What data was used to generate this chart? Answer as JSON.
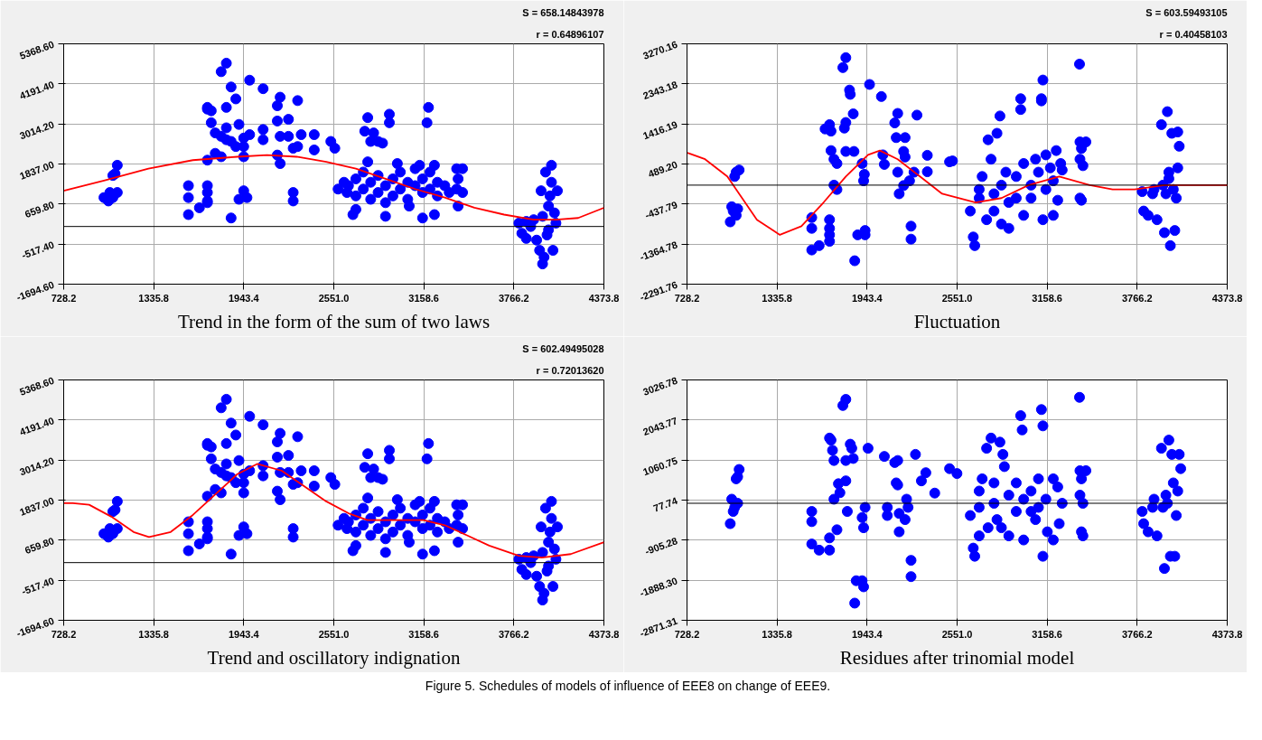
{
  "chart_data": [
    {
      "type": "scatter",
      "title": "Trend in the form of the sum of two laws",
      "annotations": [
        "S = 658.14843978",
        "r = 0.64896107"
      ],
      "xlim": [
        728.2,
        4373.8
      ],
      "ylim": [
        -1694.6,
        5368.6
      ],
      "xticks": [
        {
          "value": 728.2,
          "label": "728.2"
        },
        {
          "value": 1335.8,
          "label": "1335.8"
        },
        {
          "value": 1943.4,
          "label": "1943.4"
        },
        {
          "value": 2551.0,
          "label": "2551.0"
        },
        {
          "value": 3158.6,
          "label": "3158.6"
        },
        {
          "value": 3766.2,
          "label": "3766.2"
        },
        {
          "value": 4373.8,
          "label": "4373.8"
        }
      ],
      "yticks": [
        {
          "value": -1694.6,
          "label": "-1694.60"
        },
        {
          "value": -517.4,
          "label": "-517.40"
        },
        {
          "value": 659.8,
          "label": "659.80"
        },
        {
          "value": 1837.0,
          "label": "1837.00"
        },
        {
          "value": 3014.2,
          "label": "3014.20"
        },
        {
          "value": 4191.4,
          "label": "4191.40"
        },
        {
          "value": 5368.6,
          "label": "5368.60"
        }
      ],
      "grid": true,
      "marker": "circle",
      "ref_lines": [
        {
          "axis": "y",
          "value": 0,
          "color": "#000000"
        }
      ],
      "series": [
        {
          "color": "#0000ff",
          "x": [
            1090,
            1075,
            1060,
            1040,
            1090,
            1060,
            1030,
            1000,
            1570,
            1570,
            1570,
            1644,
            1698,
            1698,
            1698,
            1698,
            1698,
            1698,
            1698,
            1724,
            1724,
            1751,
            1751,
            1791,
            1791,
            1791,
            1826,
            1826,
            1826,
            1826,
            1858,
            1858,
            1858,
            1890,
            1890,
            1911,
            1911,
            1943,
            1943,
            1943,
            1943,
            1965,
            1983,
            1983,
            2074,
            2074,
            2074,
            2170,
            2170,
            2170,
            2189,
            2189,
            2189,
            2245,
            2245,
            2277,
            2277,
            2277,
            2307,
            2307,
            2331,
            2419,
            2419,
            2531,
            2558,
            2780,
            2926,
            2926,
            3190,
            3180,
            2760,
            2820,
            2850,
            2880,
            2800,
            2650,
            2700,
            2700,
            2750,
            2750,
            2800,
            2800,
            2850,
            2850,
            2900,
            2900,
            2950,
            2950,
            3000,
            3000,
            3050,
            3050,
            3100,
            3100,
            3150,
            3150,
            3200,
            3200,
            3250,
            3250,
            3300,
            3330,
            2700,
            2680,
            2900,
            3060,
            3150,
            3230,
            3380,
            3390,
            3380,
            3390,
            3420,
            3420,
            2640,
            2580,
            2620,
            2780,
            2980,
            3130,
            3230,
            3800,
            3820,
            3850,
            3880,
            3900,
            3920,
            3940,
            3950,
            3960,
            3970,
            3980,
            3990,
            4000,
            4010,
            4020,
            4030,
            4040,
            4050,
            4060,
            4000,
            3850,
            3960,
            4020
          ],
          "values": [
            1800,
            1550,
            1500,
            1000,
            1000,
            850,
            750,
            850,
            1200,
            850,
            350,
            550,
            3500,
            3450,
            1950,
            1200,
            1000,
            750,
            700,
            3400,
            3050,
            2750,
            2150,
            4550,
            2650,
            2050,
            4800,
            3500,
            2900,
            2550,
            4100,
            2500,
            250,
            3750,
            2350,
            3000,
            800,
            2600,
            2350,
            2050,
            1050,
            850,
            4300,
            2700,
            4050,
            2850,
            2550,
            3550,
            3100,
            2100,
            3800,
            2650,
            1850,
            3150,
            2650,
            2300,
            1000,
            750,
            3700,
            2350,
            2700,
            2700,
            2250,
            2500,
            2300,
            3200,
            3300,
            3050,
            3500,
            3050,
            2800,
            2750,
            2500,
            2450,
            2500,
            1200,
            900,
            1400,
            1100,
            1600,
            1300,
            800,
            1000,
            1500,
            1200,
            700,
            1400,
            900,
            1100,
            1600,
            1300,
            800,
            1200,
            1700,
            1000,
            1400,
            1100,
            1600,
            900,
            1300,
            1200,
            1000,
            500,
            350,
            300,
            600,
            250,
            350,
            1700,
            1400,
            1100,
            600,
            1000,
            1700,
            1000,
            1100,
            1300,
            1900,
            1850,
            1800,
            1800,
            100,
            -200,
            -350,
            0,
            200,
            -400,
            -700,
            1050,
            300,
            -900,
            1600,
            -250,
            600,
            900,
            1300,
            -700,
            400,
            100,
            1050,
            -100,
            150,
            -1100,
            1800
          ]
        },
        {
          "type": "line",
          "marker": "none",
          "color": "#ff0000",
          "x": [
            728.2,
            1000,
            1300,
            1600,
            1900,
            2100,
            2300,
            2500,
            2700,
            2900,
            3100,
            3300,
            3500,
            3700,
            3900,
            4050,
            4200,
            4373.8
          ],
          "values": [
            1050,
            1350,
            1700,
            1950,
            2050,
            2100,
            2050,
            1900,
            1700,
            1400,
            1100,
            850,
            550,
            350,
            200,
            200,
            250,
            550
          ]
        }
      ]
    },
    {
      "type": "scatter",
      "title": "Fluctuation",
      "annotations": [
        "S = 603.59493105",
        "r = 0.40458103"
      ],
      "xlim": [
        728.2,
        4373.8
      ],
      "ylim": [
        -2291.76,
        3270.16
      ],
      "xticks": [
        {
          "value": 728.2,
          "label": "728.2"
        },
        {
          "value": 1335.8,
          "label": "1335.8"
        },
        {
          "value": 1943.4,
          "label": "1943.4"
        },
        {
          "value": 2551.0,
          "label": "2551.0"
        },
        {
          "value": 3158.6,
          "label": "3158.6"
        },
        {
          "value": 3766.2,
          "label": "3766.2"
        },
        {
          "value": 4373.8,
          "label": "4373.8"
        }
      ],
      "yticks": [
        {
          "value": -2291.76,
          "label": "-2291.76"
        },
        {
          "value": -1364.78,
          "label": "-1364.78"
        },
        {
          "value": -437.79,
          "label": "-437.79"
        },
        {
          "value": 489.2,
          "label": "489.20"
        },
        {
          "value": 1416.19,
          "label": "1416.19"
        },
        {
          "value": 2343.18,
          "label": "2343.18"
        },
        {
          "value": 3270.16,
          "label": "3270.16"
        }
      ],
      "grid": true,
      "marker": "circle",
      "ref_lines": [
        {
          "axis": "y",
          "value": 0,
          "color": "#000000"
        }
      ],
      "series": [
        {
          "color": "#0000ff",
          "x": [
            1060,
            1080,
            1050,
            1030,
            1040,
            1060,
            1020,
            1070,
            1570,
            1570,
            1570,
            1620,
            1690,
            1690,
            1690,
            1690,
            1660,
            1690,
            1700,
            1700,
            1720,
            1740,
            1720,
            1740,
            1780,
            1800,
            1790,
            1800,
            1800,
            1825,
            1830,
            1850,
            1855,
            1860,
            1880,
            1910,
            1930,
            1930,
            1920,
            1925,
            1960,
            2040,
            2050,
            2060,
            2130,
            2150,
            2140,
            2150,
            2160,
            2200,
            2200,
            2190,
            2240,
            2240,
            2260,
            2280,
            2350,
            2350,
            2500,
            2520,
            2230,
            2190,
            2640,
            2660,
            2670,
            2700,
            2700,
            2720,
            2750,
            2760,
            2780,
            2800,
            2800,
            2820,
            2840,
            2850,
            2850,
            2880,
            2900,
            2900,
            2950,
            2950,
            2980,
            2980,
            3000,
            3000,
            3050,
            3050,
            3080,
            3100,
            3130,
            3120,
            3120,
            3130,
            3150,
            3150,
            3180,
            3200,
            3200,
            3220,
            3230,
            3250,
            3260,
            3380,
            3390,
            3380,
            3400,
            3380,
            3390,
            3420,
            3377,
            3800,
            3810,
            3840,
            3870,
            3880,
            3900,
            3930,
            3940,
            3950,
            3960,
            3970,
            3980,
            3990,
            4000,
            4010,
            4020,
            4040,
            4040,
            4050,
            4030,
            3980
          ],
          "values": [
            300,
            350,
            200,
            -500,
            -600,
            -700,
            -850,
            -550,
            -750,
            -1000,
            -1500,
            -1400,
            -1300,
            -1150,
            -1000,
            -800,
            1300,
            1400,
            1250,
            800,
            600,
            500,
            0,
            -100,
            2720,
            2950,
            1320,
            1450,
            780,
            2200,
            2100,
            1650,
            780,
            -1750,
            -1150,
            500,
            -1050,
            -1150,
            100,
            250,
            2330,
            2050,
            700,
            480,
            1440,
            1660,
            1100,
            300,
            -200,
            1100,
            650,
            -10,
            -950,
            -1250,
            300,
            1620,
            690,
            310,
            540,
            560,
            100,
            780,
            -600,
            -1200,
            -1400,
            -300,
            -100,
            200,
            -800,
            1050,
            600,
            -200,
            -600,
            1200,
            1600,
            0,
            -900,
            300,
            -400,
            -1000,
            200,
            -300,
            1750,
            2000,
            -700,
            500,
            0,
            -300,
            600,
            300,
            2432,
            2000,
            1950,
            -800,
            -100,
            700,
            400,
            -700,
            100,
            800,
            -350,
            500,
            350,
            1000,
            850,
            600,
            450,
            -300,
            -350,
            1000,
            2800,
            -150,
            -600,
            -700,
            -200,
            -100,
            -800,
            1400,
            0,
            -1100,
            -200,
            1700,
            300,
            -1400,
            1200,
            -100,
            -1050,
            400,
            1230,
            900,
            -300,
            150
          ]
        },
        {
          "type": "line",
          "marker": "none",
          "color": "#ff0000",
          "x": [
            728.2,
            850,
            1000,
            1100,
            1200,
            1355,
            1500,
            1650,
            1800,
            1950,
            2030,
            2150,
            2300,
            2450,
            2676,
            2850,
            3034,
            3240,
            3446,
            3600,
            3749,
            3950,
            4150,
            4373.8
          ],
          "values": [
            750,
            600,
            200,
            -300,
            -800,
            -1150,
            -950,
            -400,
            200,
            700,
            800,
            600,
            200,
            -200,
            -400,
            -300,
            0,
            200,
            0,
            -100,
            -100,
            0,
            0,
            0
          ]
        }
      ]
    },
    {
      "type": "scatter",
      "title": "Trend and oscillatory indignation",
      "annotations": [
        "S = 602.49495028",
        "r = 0.72013620"
      ],
      "xlim": [
        728.2,
        4373.8
      ],
      "ylim": [
        -1694.6,
        5368.6
      ],
      "xticks": [
        {
          "value": 728.2,
          "label": "728.2"
        },
        {
          "value": 1335.8,
          "label": "1335.8"
        },
        {
          "value": 1943.4,
          "label": "1943.4"
        },
        {
          "value": 2551.0,
          "label": "2551.0"
        },
        {
          "value": 3158.6,
          "label": "3158.6"
        },
        {
          "value": 3766.2,
          "label": "3766.2"
        },
        {
          "value": 4373.8,
          "label": "4373.8"
        }
      ],
      "yticks": [
        {
          "value": -1694.6,
          "label": "-1694.60"
        },
        {
          "value": -517.4,
          "label": "-517.40"
        },
        {
          "value": 659.8,
          "label": "659.80"
        },
        {
          "value": 1837.0,
          "label": "1837.00"
        },
        {
          "value": 3014.2,
          "label": "3014.20"
        },
        {
          "value": 4191.4,
          "label": "4191.40"
        },
        {
          "value": 5368.6,
          "label": "5368.60"
        }
      ],
      "grid": true,
      "marker": "circle",
      "ref_lines": [
        {
          "axis": "y",
          "value": 0,
          "color": "#000000"
        }
      ],
      "series": [
        {
          "color": "#0000ff",
          "x": [
            1090,
            1075,
            1060,
            1040,
            1090,
            1060,
            1030,
            1000,
            1570,
            1570,
            1570,
            1644,
            1698,
            1698,
            1698,
            1698,
            1698,
            1698,
            1698,
            1724,
            1724,
            1751,
            1751,
            1791,
            1791,
            1791,
            1826,
            1826,
            1826,
            1826,
            1858,
            1858,
            1858,
            1890,
            1890,
            1911,
            1911,
            1943,
            1943,
            1943,
            1943,
            1965,
            1983,
            1983,
            2074,
            2074,
            2074,
            2170,
            2170,
            2170,
            2189,
            2189,
            2189,
            2245,
            2245,
            2277,
            2277,
            2277,
            2307,
            2307,
            2331,
            2419,
            2419,
            2531,
            2558,
            2780,
            2926,
            2926,
            3190,
            3180,
            2760,
            2820,
            2850,
            2880,
            2800,
            2650,
            2700,
            2700,
            2750,
            2750,
            2800,
            2800,
            2850,
            2850,
            2900,
            2900,
            2950,
            2950,
            3000,
            3000,
            3050,
            3050,
            3100,
            3100,
            3150,
            3150,
            3200,
            3200,
            3250,
            3250,
            3300,
            3330,
            2700,
            2680,
            2900,
            3060,
            3150,
            3230,
            3380,
            3390,
            3380,
            3390,
            3420,
            3420,
            2640,
            2580,
            2620,
            2780,
            2980,
            3130,
            3230,
            3800,
            3820,
            3850,
            3880,
            3900,
            3920,
            3940,
            3950,
            3960,
            3970,
            3980,
            3990,
            4000,
            4010,
            4020,
            4030,
            4040,
            4050,
            4060,
            4000,
            3850,
            3960,
            4020
          ],
          "values": [
            1800,
            1550,
            1500,
            1000,
            1000,
            850,
            750,
            850,
            1200,
            850,
            350,
            550,
            3500,
            3450,
            1950,
            1200,
            1000,
            750,
            700,
            3400,
            3050,
            2750,
            2150,
            4550,
            2650,
            2050,
            4800,
            3500,
            2900,
            2550,
            4100,
            2500,
            250,
            3750,
            2350,
            3000,
            800,
            2600,
            2350,
            2050,
            1050,
            850,
            4300,
            2700,
            4050,
            2850,
            2550,
            3550,
            3100,
            2100,
            3800,
            2650,
            1850,
            3150,
            2650,
            2300,
            1000,
            750,
            3700,
            2350,
            2700,
            2700,
            2250,
            2500,
            2300,
            3200,
            3300,
            3050,
            3500,
            3050,
            2800,
            2750,
            2500,
            2450,
            2500,
            1200,
            900,
            1400,
            1100,
            1600,
            1300,
            800,
            1000,
            1500,
            1200,
            700,
            1400,
            900,
            1100,
            1600,
            1300,
            800,
            1200,
            1700,
            1000,
            1400,
            1100,
            1600,
            900,
            1300,
            1200,
            1000,
            500,
            350,
            300,
            600,
            250,
            350,
            1700,
            1400,
            1100,
            600,
            1000,
            1700,
            1000,
            1100,
            1300,
            1900,
            1850,
            1800,
            1800,
            100,
            -200,
            -350,
            0,
            200,
            -400,
            -700,
            1050,
            300,
            -900,
            1600,
            -250,
            600,
            900,
            1300,
            -700,
            400,
            100,
            1050,
            -100,
            150,
            -1100,
            1800
          ]
        },
        {
          "type": "line",
          "marker": "none",
          "color": "#ff0000",
          "x": [
            728.2,
            790,
            900,
            1050,
            1200,
            1304,
            1450,
            1600,
            1750,
            1900,
            2034,
            2200,
            2350,
            2500,
            2650,
            2778,
            2950,
            3156,
            3300,
            3450,
            3600,
            3800,
            3954,
            4150,
            4373.8
          ],
          "values": [
            1750,
            1750,
            1700,
            1350,
            900,
            750,
            900,
            1400,
            2000,
            2600,
            2900,
            2700,
            2250,
            1800,
            1450,
            1250,
            1250,
            1250,
            1100,
            800,
            500,
            200,
            150,
            250,
            600
          ]
        }
      ]
    },
    {
      "type": "scatter",
      "title": "Residues after trinomial model",
      "annotations": [
        "Figure 5. Schedules of models of influence of EEE8 on change of EEE9."
      ],
      "xlim": [
        728.2,
        4373.8
      ],
      "ylim": [
        -2871.31,
        3026.78
      ],
      "xticks": [
        {
          "value": 728.2,
          "label": "728.2"
        },
        {
          "value": 1335.8,
          "label": "1335.8"
        },
        {
          "value": 1943.4,
          "label": "1943.4"
        },
        {
          "value": 2551.0,
          "label": "2551.0"
        },
        {
          "value": 3158.6,
          "label": "3158.6"
        },
        {
          "value": 3766.2,
          "label": "3766.2"
        },
        {
          "value": 4373.8,
          "label": "4373.8"
        }
      ],
      "yticks": [
        {
          "value": -2871.31,
          "label": "-2871.31"
        },
        {
          "value": -1888.3,
          "label": "-1888.30"
        },
        {
          "value": -905.28,
          "label": "-905.28"
        },
        {
          "value": 77.74,
          "label": "77.74"
        },
        {
          "value": 1060.75,
          "label": "1060.75"
        },
        {
          "value": 2043.77,
          "label": "2043.77"
        },
        {
          "value": 3026.78,
          "label": "3026.78"
        }
      ],
      "grid": true,
      "marker": "circle",
      "ref_lines": [
        {
          "axis": "y",
          "value": 0,
          "color": "#000000"
        }
      ],
      "series": [
        {
          "color": "#0000ff",
          "x": [
            1030,
            1050,
            1040,
            1020,
            1080,
            1070,
            1060,
            1070,
            1570,
            1570,
            1570,
            1620,
            1690,
            1700,
            1710,
            1720,
            1720,
            1740,
            1690,
            1690,
            1750,
            1760,
            1780,
            1800,
            1800,
            1800,
            1810,
            1830,
            1840,
            1850,
            1860,
            1870,
            1910,
            1920,
            1910,
            1920,
            1930,
            1950,
            2060,
            2080,
            2080,
            2140,
            2150,
            2150,
            2160,
            2160,
            2200,
            2240,
            2240,
            2270,
            2310,
            2340,
            2400,
            2500,
            2550,
            2210,
            2220,
            2130,
            2640,
            2660,
            2670,
            2700,
            2700,
            2720,
            2750,
            2760,
            2780,
            2800,
            2820,
            2840,
            2850,
            2860,
            2870,
            2900,
            2900,
            2950,
            2950,
            2980,
            2990,
            3000,
            3050,
            3050,
            3080,
            3100,
            3120,
            3130,
            3130,
            3150,
            3160,
            3200,
            3200,
            3230,
            3240,
            3260,
            3380,
            3390,
            3380,
            3400,
            3390,
            3400,
            3420,
            3377,
            2700,
            2800,
            3000,
            3100,
            3800,
            3810,
            3840,
            3870,
            3880,
            3900,
            3930,
            3940,
            3950,
            3960,
            3980,
            3990,
            4000,
            4010,
            4020,
            4040,
            4050,
            4060,
            3970,
            4030
          ],
          "values": [
            100,
            -100,
            -200,
            -500,
            830,
            650,
            600,
            0,
            -200,
            -450,
            -1000,
            -1150,
            1600,
            1550,
            1300,
            1050,
            100,
            -650,
            -850,
            -1150,
            480,
            260,
            2400,
            2550,
            1050,
            550,
            -200,
            1450,
            1350,
            1100,
            -2450,
            -1900,
            -1900,
            -2050,
            -350,
            -600,
            -100,
            1350,
            1150,
            -100,
            -300,
            500,
            450,
            1050,
            -250,
            -700,
            -400,
            -1400,
            -1800,
            1200,
            550,
            750,
            250,
            850,
            730,
            100,
            -100,
            1000,
            -300,
            -1100,
            -1300,
            -800,
            300,
            600,
            1350,
            -600,
            1600,
            0,
            -400,
            1500,
            -600,
            1200,
            900,
            200,
            -800,
            500,
            -200,
            2150,
            1800,
            -900,
            300,
            -200,
            -400,
            600,
            2300,
            1900,
            -1300,
            100,
            -700,
            -900,
            600,
            400,
            -500,
            0,
            800,
            600,
            200,
            0,
            -700,
            -800,
            800,
            2600,
            -100,
            500,
            100,
            -100,
            -200,
            -500,
            -700,
            -100,
            100,
            -800,
            1350,
            -100,
            -1600,
            200,
            1550,
            -1300,
            1200,
            500,
            -1300,
            300,
            1200,
            850,
            0,
            -300
          ]
        }
      ]
    }
  ]
}
